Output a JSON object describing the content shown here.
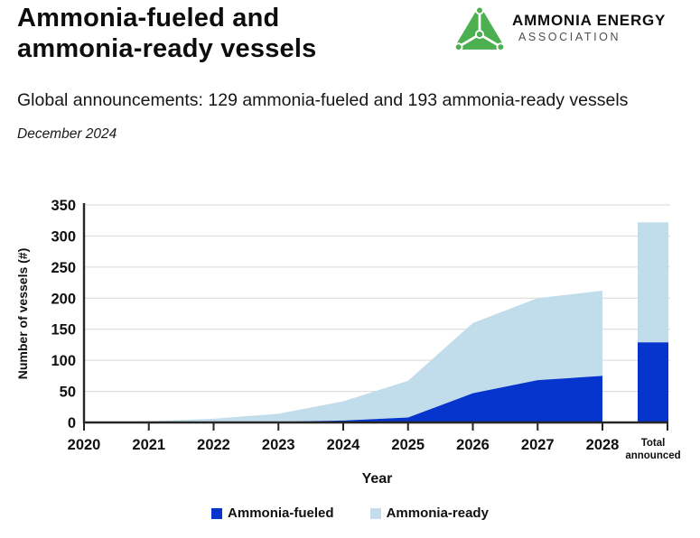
{
  "header": {
    "title": "Ammonia-fueled and ammonia-ready vessels",
    "subtitle": "Global announcements: 129 ammonia-fueled and 193 ammonia-ready vessels",
    "date": "December 2024",
    "logo": {
      "name": "AMMONIA ENERGY",
      "subname": "ASSOCIATION",
      "green": "#4caf50"
    }
  },
  "chart_data": {
    "type": "area",
    "stacked": true,
    "x": [
      2020,
      2021,
      2022,
      2023,
      2024,
      2025,
      2026,
      2027,
      2028
    ],
    "series": [
      {
        "name": "Ammonia-fueled",
        "color": "#0535cd",
        "values": [
          0,
          0,
          0,
          1,
          3,
          8,
          47,
          68,
          75
        ]
      },
      {
        "name": "Ammonia-ready",
        "color": "#c1dcea",
        "values": [
          0,
          2,
          6,
          13,
          31,
          59,
          113,
          132,
          137
        ]
      }
    ],
    "stacked_totals": [
      0,
      2,
      6,
      14,
      34,
      67,
      160,
      200,
      212
    ],
    "total_bar": {
      "label_line1": "Total",
      "label_line2": "announced",
      "ammonia_fueled": 129,
      "ammonia_ready": 193,
      "total": 322
    },
    "xlabel": "Year",
    "ylabel": "Number of vessels (#)",
    "ylim": [
      0,
      350
    ],
    "ytick_step": 50,
    "grid": true,
    "grid_color": "#d9d9d9",
    "axis_color": "#262626",
    "legend_position": "bottom"
  }
}
